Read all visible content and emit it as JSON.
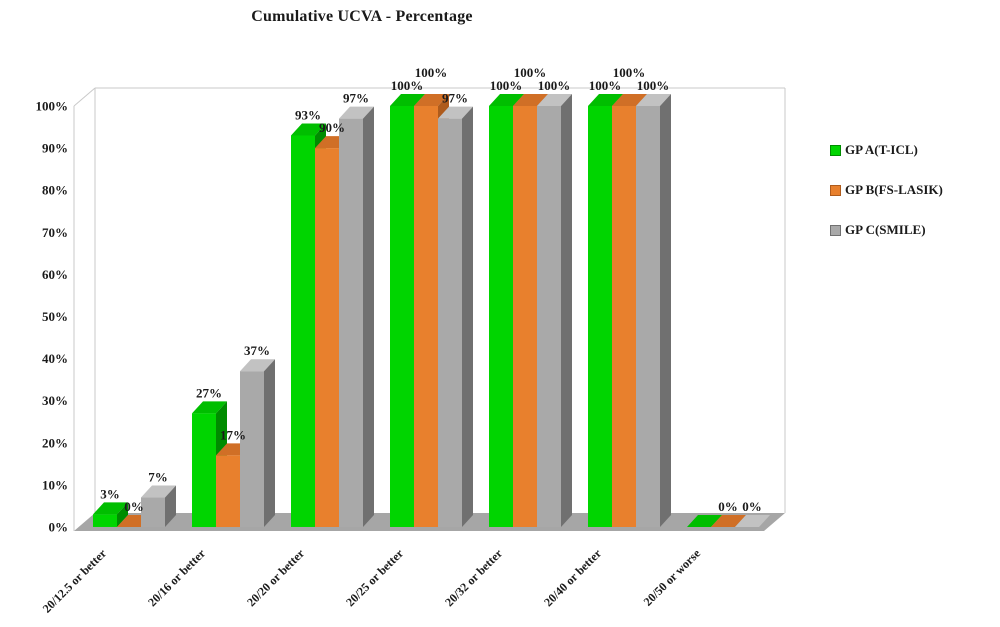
{
  "chart_data": {
    "type": "bar",
    "variant": "3d-clustered-column",
    "title": "Cumulative UCVA - Percentage",
    "categories": [
      "20/12.5 or better",
      "20/16 or better",
      "20/20 or better",
      "20/25 or better",
      "20/32 or better",
      "20/40 or better",
      "20/50 or worse"
    ],
    "series": [
      {
        "name": "GP A(T-ICL)",
        "color": "#00D500",
        "color_top": "#00BE00",
        "color_side": "#008C00",
        "values": [
          3,
          27,
          93,
          100,
          100,
          100,
          0
        ],
        "labels": [
          "3%",
          "27%",
          "93%",
          "100%",
          "100%",
          "100%",
          ""
        ]
      },
      {
        "name": "GP B(FS-LASIK)",
        "color": "#E8802D",
        "color_top": "#D06F26",
        "color_side": "#AE5B1C",
        "values": [
          0,
          17,
          90,
          100,
          100,
          100,
          0
        ],
        "labels": [
          "0%",
          "17%",
          "90%",
          "100%",
          "100%",
          "100%",
          "0%"
        ]
      },
      {
        "name": "GP C(SMILE)",
        "color": "#A9A9A9",
        "color_top": "#C2C2C2",
        "color_side": "#707070",
        "values": [
          7,
          37,
          97,
          97,
          100,
          100,
          0
        ],
        "labels": [
          "7%",
          "37%",
          "97%",
          "97%",
          "100%",
          "100%",
          "0%"
        ]
      }
    ],
    "y_axis": {
      "min": 0,
      "max": 100,
      "step": 10,
      "ticks": [
        "0%",
        "10%",
        "20%",
        "30%",
        "40%",
        "50%",
        "60%",
        "70%",
        "80%",
        "90%",
        "100%"
      ]
    },
    "legend_position": "right",
    "grid": false,
    "style": {
      "background": "#FFFFFF",
      "floor_color": "#A6A6A6",
      "wall_line_color": "#C9C9C9",
      "text_color": "#1A1A1A"
    }
  }
}
